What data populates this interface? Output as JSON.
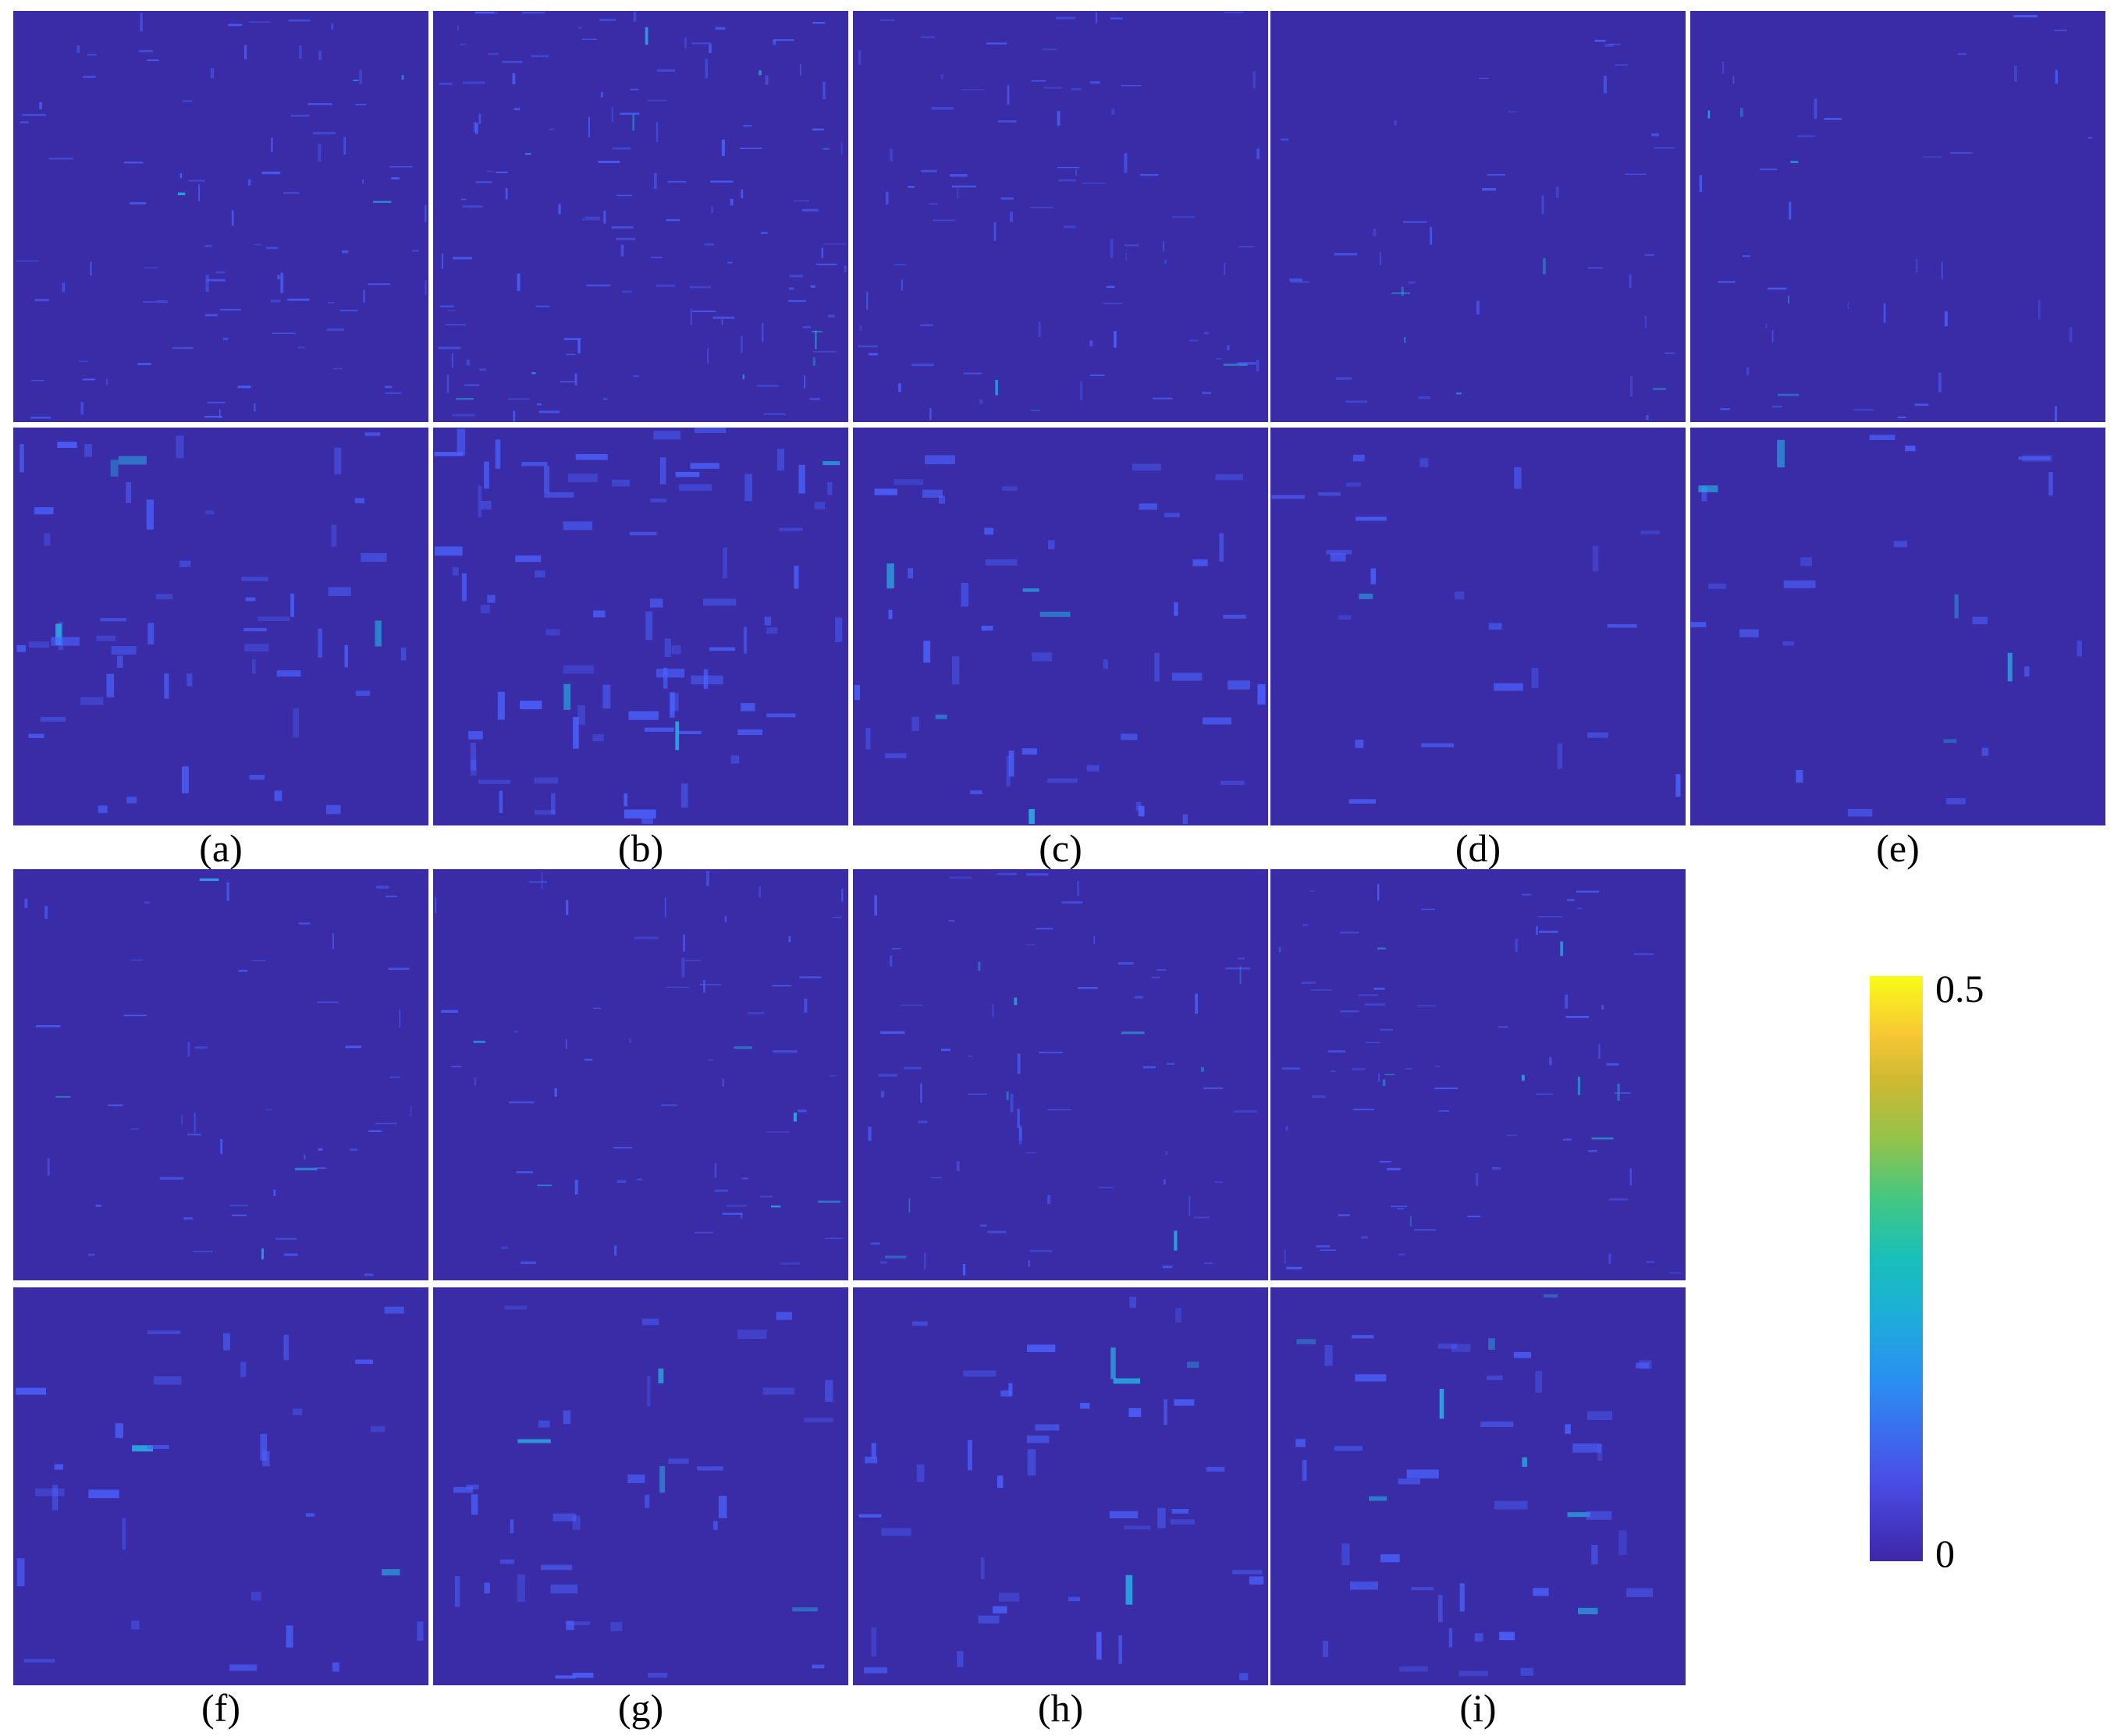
{
  "figure": {
    "captions": [
      "(a)",
      "(b)",
      "(c)",
      "(d)",
      "(e)",
      "(f)",
      "(g)",
      "(h)",
      "(i)"
    ],
    "colorbar": {
      "max_label": "0.5",
      "min_label": "0",
      "colormap": "parula",
      "colors": [
        "#3e26a8",
        "#4a4ee8",
        "#2c8cf3",
        "#1caed9",
        "#19c0b9",
        "#44c681",
        "#93c34a",
        "#cdb932",
        "#f7c735",
        "#f9fb16"
      ]
    },
    "panel_background": "#3a2ca6",
    "highlight_color": "#4b63ff",
    "strong_highlight_color": "#27b5e8"
  }
}
